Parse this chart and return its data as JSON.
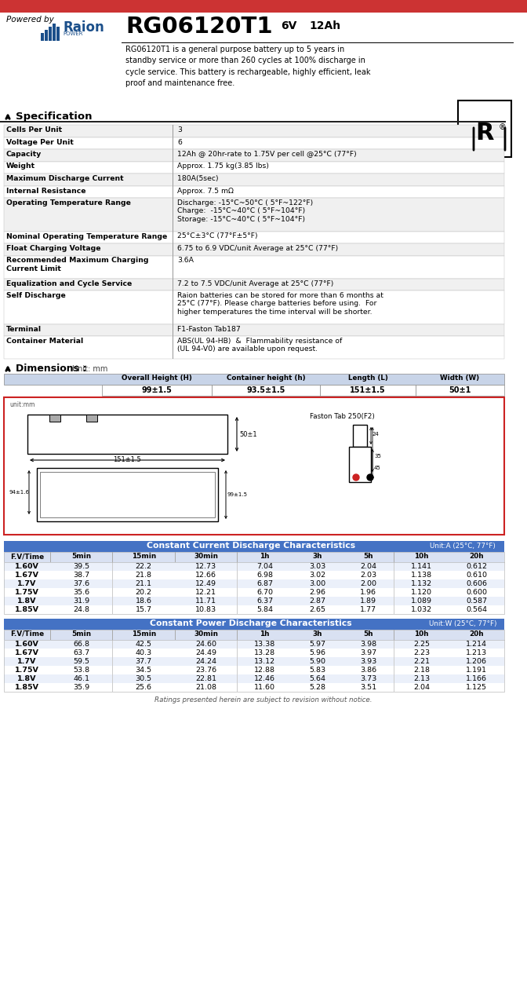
{
  "red_bar_color": "#CC3333",
  "title_model": "RG06120T1",
  "title_voltage": "6V",
  "title_ah": "12Ah",
  "powered_by": "Powered by",
  "description": "RG06120T1 is a general purpose battery up to 5 years in\nstandby service or more than 260 cycles at 100% discharge in\ncycle service. This battery is rechargeable, highly efficient, leak\nproof and maintenance free.",
  "spec_title": "Specification",
  "specs": [
    [
      "Cells Per Unit",
      "3"
    ],
    [
      "Voltage Per Unit",
      "6"
    ],
    [
      "Capacity",
      "12Ah @ 20hr-rate to 1.75V per cell @25°C (77°F)"
    ],
    [
      "Weight",
      "Approx. 1.75 kg(3.85 lbs)"
    ],
    [
      "Maximum Discharge Current",
      "180A(5sec)"
    ],
    [
      "Internal Resistance",
      "Approx. 7.5 mΩ"
    ],
    [
      "Operating Temperature Range",
      "Discharge: -15°C~50°C ( 5°F~122°F)\nCharge:  -15°C~40°C ( 5°F~104°F)\nStorage: -15°C~40°C ( 5°F~104°F)"
    ],
    [
      "Nominal Operating Temperature Range",
      "25°C±3°C (77°F±5°F)"
    ],
    [
      "Float Charging Voltage",
      "6.75 to 6.9 VDC/unit Average at 25°C (77°F)"
    ],
    [
      "Recommended Maximum Charging\nCurrent Limit",
      "3.6A"
    ],
    [
      "Equalization and Cycle Service",
      "7.2 to 7.5 VDC/unit Average at 25°C (77°F)"
    ],
    [
      "Self Discharge",
      "Raion batteries can be stored for more than 6 months at\n25°C (77°F). Please charge batteries before using.  For\nhigher temperatures the time interval will be shorter."
    ],
    [
      "Terminal",
      "F1-Faston Tab187"
    ],
    [
      "Container Material",
      "ABS(UL 94-HB)  &  Flammability resistance of\n(UL 94-V0) are available upon request."
    ]
  ],
  "dim_title": "Dimensions :",
  "dim_unit": "Unit: mm",
  "dim_headers": [
    "Overall Height (H)",
    "Container height (h)",
    "Length (L)",
    "Width (W)"
  ],
  "dim_values": [
    "99±1.5",
    "93.5±1.5",
    "151±1.5",
    "50±1"
  ],
  "cc_title": "Constant Current Discharge Characteristics",
  "cc_unit": "Unit:A (25°C, 77°F)",
  "cc_headers": [
    "F.V/Time",
    "5min",
    "15min",
    "30min",
    "1h",
    "3h",
    "5h",
    "10h",
    "20h"
  ],
  "cc_data": [
    [
      "1.60V",
      "39.5",
      "22.2",
      "12.73",
      "7.04",
      "3.03",
      "2.04",
      "1.141",
      "0.612"
    ],
    [
      "1.67V",
      "38.7",
      "21.8",
      "12.66",
      "6.98",
      "3.02",
      "2.03",
      "1.138",
      "0.610"
    ],
    [
      "1.7V",
      "37.6",
      "21.1",
      "12.49",
      "6.87",
      "3.00",
      "2.00",
      "1.132",
      "0.606"
    ],
    [
      "1.75V",
      "35.6",
      "20.2",
      "12.21",
      "6.70",
      "2.96",
      "1.96",
      "1.120",
      "0.600"
    ],
    [
      "1.8V",
      "31.9",
      "18.6",
      "11.71",
      "6.37",
      "2.87",
      "1.89",
      "1.089",
      "0.587"
    ],
    [
      "1.85V",
      "24.8",
      "15.7",
      "10.83",
      "5.84",
      "2.65",
      "1.77",
      "1.032",
      "0.564"
    ]
  ],
  "cp_title": "Constant Power Discharge Characteristics",
  "cp_unit": "Unit:W (25°C, 77°F)",
  "cp_headers": [
    "F.V/Time",
    "5min",
    "15min",
    "30min",
    "1h",
    "3h",
    "5h",
    "10h",
    "20h"
  ],
  "cp_data": [
    [
      "1.60V",
      "66.8",
      "42.5",
      "24.60",
      "13.38",
      "5.97",
      "3.98",
      "2.25",
      "1.214"
    ],
    [
      "1.67V",
      "63.7",
      "40.3",
      "24.49",
      "13.28",
      "5.96",
      "3.97",
      "2.23",
      "1.213"
    ],
    [
      "1.7V",
      "59.5",
      "37.7",
      "24.24",
      "13.12",
      "5.90",
      "3.93",
      "2.21",
      "1.206"
    ],
    [
      "1.75V",
      "53.8",
      "34.5",
      "23.76",
      "12.88",
      "5.83",
      "3.86",
      "2.18",
      "1.191"
    ],
    [
      "1.8V",
      "46.1",
      "30.5",
      "22.81",
      "12.46",
      "5.64",
      "3.73",
      "2.13",
      "1.166"
    ],
    [
      "1.85V",
      "35.9",
      "25.6",
      "21.08",
      "11.60",
      "5.28",
      "3.51",
      "2.04",
      "1.125"
    ]
  ],
  "footer": "Ratings presented herein are subject to revision without notice."
}
